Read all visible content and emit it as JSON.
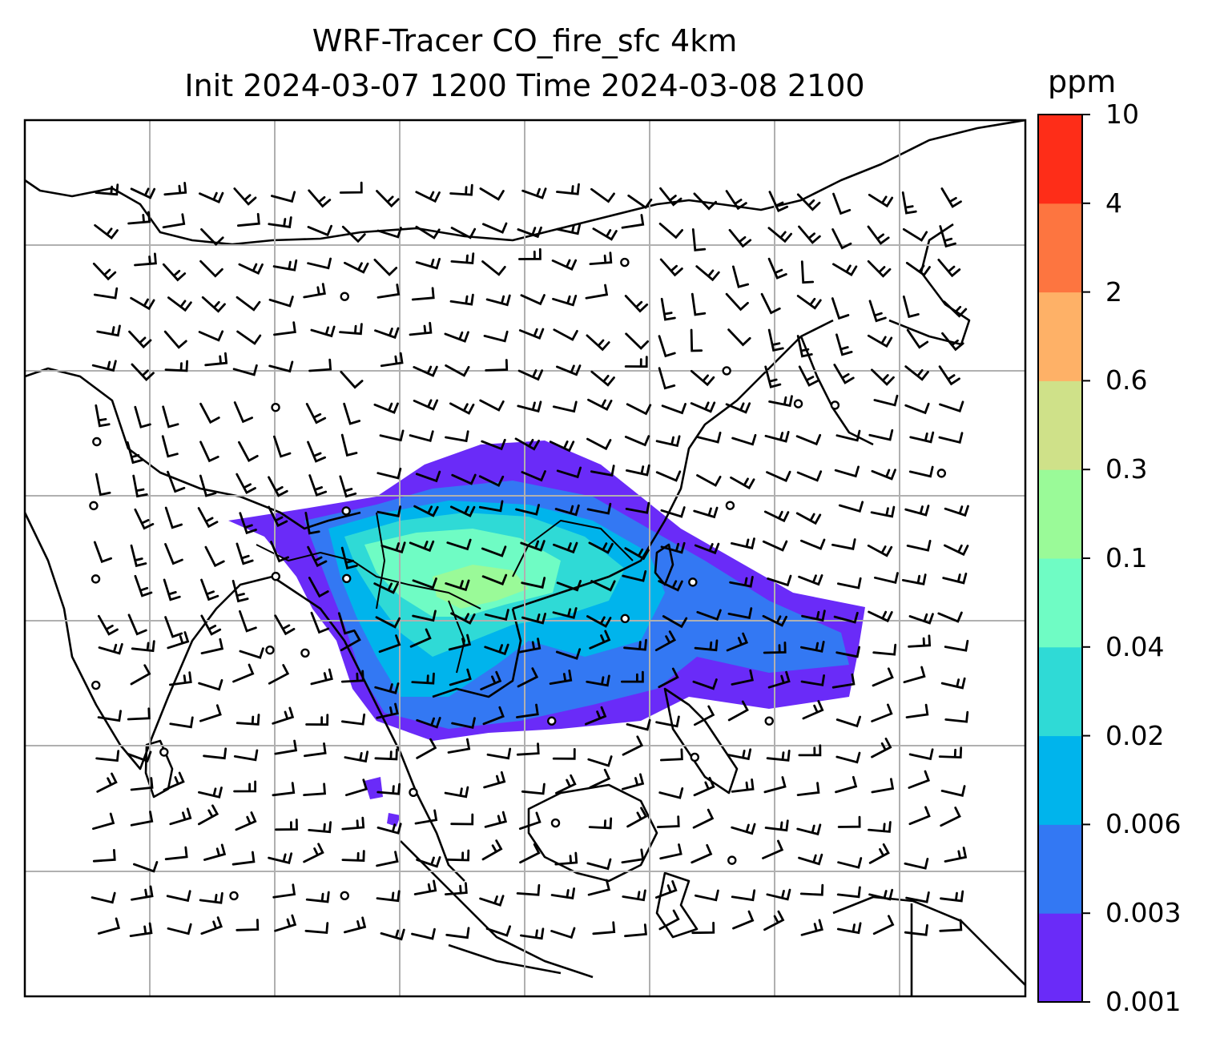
{
  "title": {
    "line1": "WRF-Tracer CO_fire_sfc 4km",
    "line2": "Init 2024-03-07 1200 Time 2024-03-08 2100"
  },
  "colorbar": {
    "unit": "ppm",
    "levels": [
      "0.001",
      "0.003",
      "0.006",
      "0.02",
      "0.04",
      "0.1",
      "0.3",
      "0.6",
      "2",
      "4",
      "10"
    ],
    "colors": [
      "#6a2bf8",
      "#3378f3",
      "#00b4ec",
      "#2fdad6",
      "#6ffcc4",
      "#9afa98",
      "#cfe189",
      "#feb167",
      "#fd7540",
      "#fe2d18"
    ]
  },
  "map": {
    "field": "CO_fire_sfc",
    "overlay": "wind barbs",
    "gridlines": true,
    "coastlines": true
  }
}
